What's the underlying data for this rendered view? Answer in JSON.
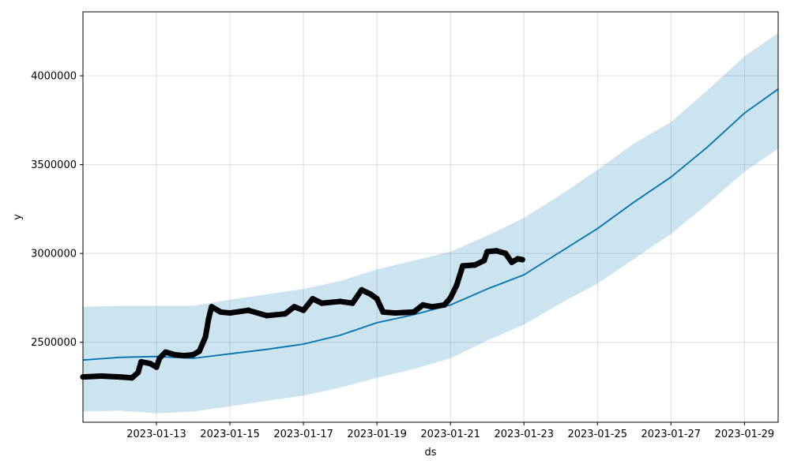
{
  "chart_data": {
    "type": "line",
    "title": "",
    "xlabel": "ds",
    "ylabel": "y",
    "grid": true,
    "legend": "none",
    "xlim": [
      "2023-01-11",
      "2023-01-29 22:00"
    ],
    "ylim": [
      2050000,
      4360000
    ],
    "x_ticks": [
      "2023-01-13",
      "2023-01-15",
      "2023-01-17",
      "2023-01-19",
      "2023-01-21",
      "2023-01-23",
      "2023-01-25",
      "2023-01-27",
      "2023-01-29"
    ],
    "y_ticks": [
      2500000,
      3000000,
      3500000,
      4000000
    ],
    "colors": {
      "forecast_line": "#0072B2",
      "uncertainty_band": "#0072B2",
      "observed_points": "#000000"
    },
    "series": [
      {
        "kind": "forecast",
        "points": [
          [
            "2023-01-11",
            2400000
          ],
          [
            "2023-01-12",
            2415000
          ],
          [
            "2023-01-13",
            2420000
          ],
          [
            "2023-01-14",
            2410000
          ],
          [
            "2023-01-15",
            2435000
          ],
          [
            "2023-01-16",
            2460000
          ],
          [
            "2023-01-17",
            2490000
          ],
          [
            "2023-01-18",
            2540000
          ],
          [
            "2023-01-19",
            2610000
          ],
          [
            "2023-01-20",
            2655000
          ],
          [
            "2023-01-21",
            2710000
          ],
          [
            "2023-01-22",
            2800000
          ],
          [
            "2023-01-23",
            2880000
          ],
          [
            "2023-01-24",
            3010000
          ],
          [
            "2023-01-25",
            3140000
          ],
          [
            "2023-01-26",
            3290000
          ],
          [
            "2023-01-27",
            3430000
          ],
          [
            "2023-01-28",
            3600000
          ],
          [
            "2023-01-29",
            3790000
          ],
          [
            "2023-01-29 22:00",
            3925000
          ]
        ]
      },
      {
        "kind": "uncertainty_upper",
        "points": [
          [
            "2023-01-11",
            2700000
          ],
          [
            "2023-01-12",
            2705000
          ],
          [
            "2023-01-13",
            2705000
          ],
          [
            "2023-01-14",
            2705000
          ],
          [
            "2023-01-15",
            2740000
          ],
          [
            "2023-01-16",
            2770000
          ],
          [
            "2023-01-17",
            2800000
          ],
          [
            "2023-01-18",
            2845000
          ],
          [
            "2023-01-19",
            2910000
          ],
          [
            "2023-01-20",
            2960000
          ],
          [
            "2023-01-21",
            3010000
          ],
          [
            "2023-01-22",
            3100000
          ],
          [
            "2023-01-23",
            3200000
          ],
          [
            "2023-01-24",
            3330000
          ],
          [
            "2023-01-25",
            3470000
          ],
          [
            "2023-01-26",
            3620000
          ],
          [
            "2023-01-27",
            3740000
          ],
          [
            "2023-01-28",
            3920000
          ],
          [
            "2023-01-29",
            4110000
          ],
          [
            "2023-01-29 22:00",
            4240000
          ]
        ]
      },
      {
        "kind": "uncertainty_lower",
        "points": [
          [
            "2023-01-11",
            2110000
          ],
          [
            "2023-01-12",
            2115000
          ],
          [
            "2023-01-13",
            2100000
          ],
          [
            "2023-01-14",
            2110000
          ],
          [
            "2023-01-15",
            2140000
          ],
          [
            "2023-01-16",
            2170000
          ],
          [
            "2023-01-17",
            2200000
          ],
          [
            "2023-01-18",
            2245000
          ],
          [
            "2023-01-19",
            2300000
          ],
          [
            "2023-01-20",
            2350000
          ],
          [
            "2023-01-21",
            2410000
          ],
          [
            "2023-01-22",
            2510000
          ],
          [
            "2023-01-23",
            2600000
          ],
          [
            "2023-01-24",
            2720000
          ],
          [
            "2023-01-25",
            2830000
          ],
          [
            "2023-01-26",
            2970000
          ],
          [
            "2023-01-27",
            3110000
          ],
          [
            "2023-01-28",
            3280000
          ],
          [
            "2023-01-29",
            3460000
          ],
          [
            "2023-01-29 22:00",
            3590000
          ]
        ]
      },
      {
        "kind": "observed",
        "points": [
          [
            "2023-01-11",
            2305000
          ],
          [
            "2023-01-11 12:00",
            2310000
          ],
          [
            "2023-01-12",
            2305000
          ],
          [
            "2023-01-12 08:00",
            2300000
          ],
          [
            "2023-01-12 12:00",
            2330000
          ],
          [
            "2023-01-12 14:00",
            2390000
          ],
          [
            "2023-01-12 20:00",
            2380000
          ],
          [
            "2023-01-13",
            2360000
          ],
          [
            "2023-01-13 02:00",
            2410000
          ],
          [
            "2023-01-13 06:00",
            2445000
          ],
          [
            "2023-01-13 12:00",
            2430000
          ],
          [
            "2023-01-13 18:00",
            2425000
          ],
          [
            "2023-01-14",
            2430000
          ],
          [
            "2023-01-14 04:00",
            2450000
          ],
          [
            "2023-01-14 08:00",
            2530000
          ],
          [
            "2023-01-14 10:00",
            2630000
          ],
          [
            "2023-01-14 12:00",
            2700000
          ],
          [
            "2023-01-14 18:00",
            2670000
          ],
          [
            "2023-01-15",
            2665000
          ],
          [
            "2023-01-15 12:00",
            2680000
          ],
          [
            "2023-01-16",
            2650000
          ],
          [
            "2023-01-16 12:00",
            2660000
          ],
          [
            "2023-01-16 18:00",
            2700000
          ],
          [
            "2023-01-17",
            2680000
          ],
          [
            "2023-01-17 06:00",
            2745000
          ],
          [
            "2023-01-17 12:00",
            2720000
          ],
          [
            "2023-01-18",
            2730000
          ],
          [
            "2023-01-18 08:00",
            2720000
          ],
          [
            "2023-01-18 14:00",
            2795000
          ],
          [
            "2023-01-18 20:00",
            2770000
          ],
          [
            "2023-01-19",
            2745000
          ],
          [
            "2023-01-19 04:00",
            2670000
          ],
          [
            "2023-01-19 12:00",
            2665000
          ],
          [
            "2023-01-20",
            2670000
          ],
          [
            "2023-01-20 06:00",
            2710000
          ],
          [
            "2023-01-20 12:00",
            2700000
          ],
          [
            "2023-01-20 20:00",
            2710000
          ],
          [
            "2023-01-21",
            2750000
          ],
          [
            "2023-01-21 04:00",
            2820000
          ],
          [
            "2023-01-21 08:00",
            2930000
          ],
          [
            "2023-01-21 16:00",
            2935000
          ],
          [
            "2023-01-21 22:00",
            2960000
          ],
          [
            "2023-01-22",
            3010000
          ],
          [
            "2023-01-22 06:00",
            3015000
          ],
          [
            "2023-01-22 12:00",
            3000000
          ],
          [
            "2023-01-22 16:00",
            2950000
          ],
          [
            "2023-01-22 20:00",
            2970000
          ],
          [
            "2023-01-22 23:00",
            2965000
          ]
        ]
      }
    ]
  }
}
